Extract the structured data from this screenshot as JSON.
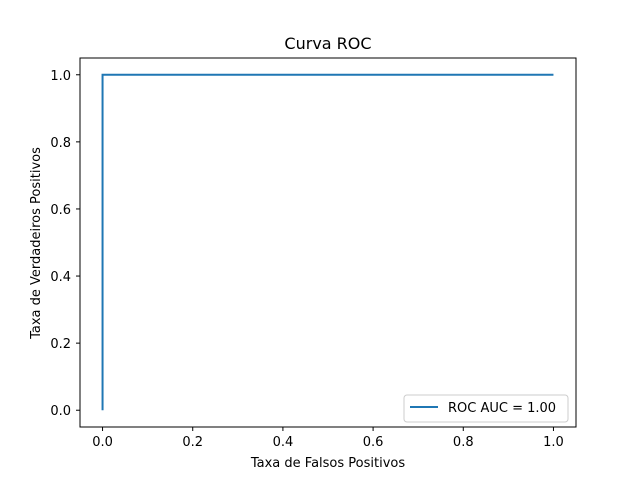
{
  "chart_data": {
    "type": "line",
    "title": "Curva ROC",
    "xlabel": "Taxa de Falsos Positivos",
    "ylabel": "Taxa de Verdadeiros Positivos",
    "xlim": [
      -0.05,
      1.05
    ],
    "ylim": [
      -0.05,
      1.05
    ],
    "xticks": [
      0.0,
      0.2,
      0.4,
      0.6,
      0.8,
      1.0
    ],
    "yticks": [
      0.0,
      0.2,
      0.4,
      0.6,
      0.8,
      1.0
    ],
    "xtick_labels": [
      "0.0",
      "0.2",
      "0.4",
      "0.6",
      "0.8",
      "1.0"
    ],
    "ytick_labels": [
      "0.0",
      "0.2",
      "0.4",
      "0.6",
      "0.8",
      "1.0"
    ],
    "grid": false,
    "legend_position": "lower-right",
    "series": [
      {
        "name": "ROC AUC = 1.00",
        "color": "#1f77b4",
        "x": [
          0.0,
          0.0,
          1.0
        ],
        "y": [
          0.0,
          1.0,
          1.0
        ]
      }
    ]
  }
}
